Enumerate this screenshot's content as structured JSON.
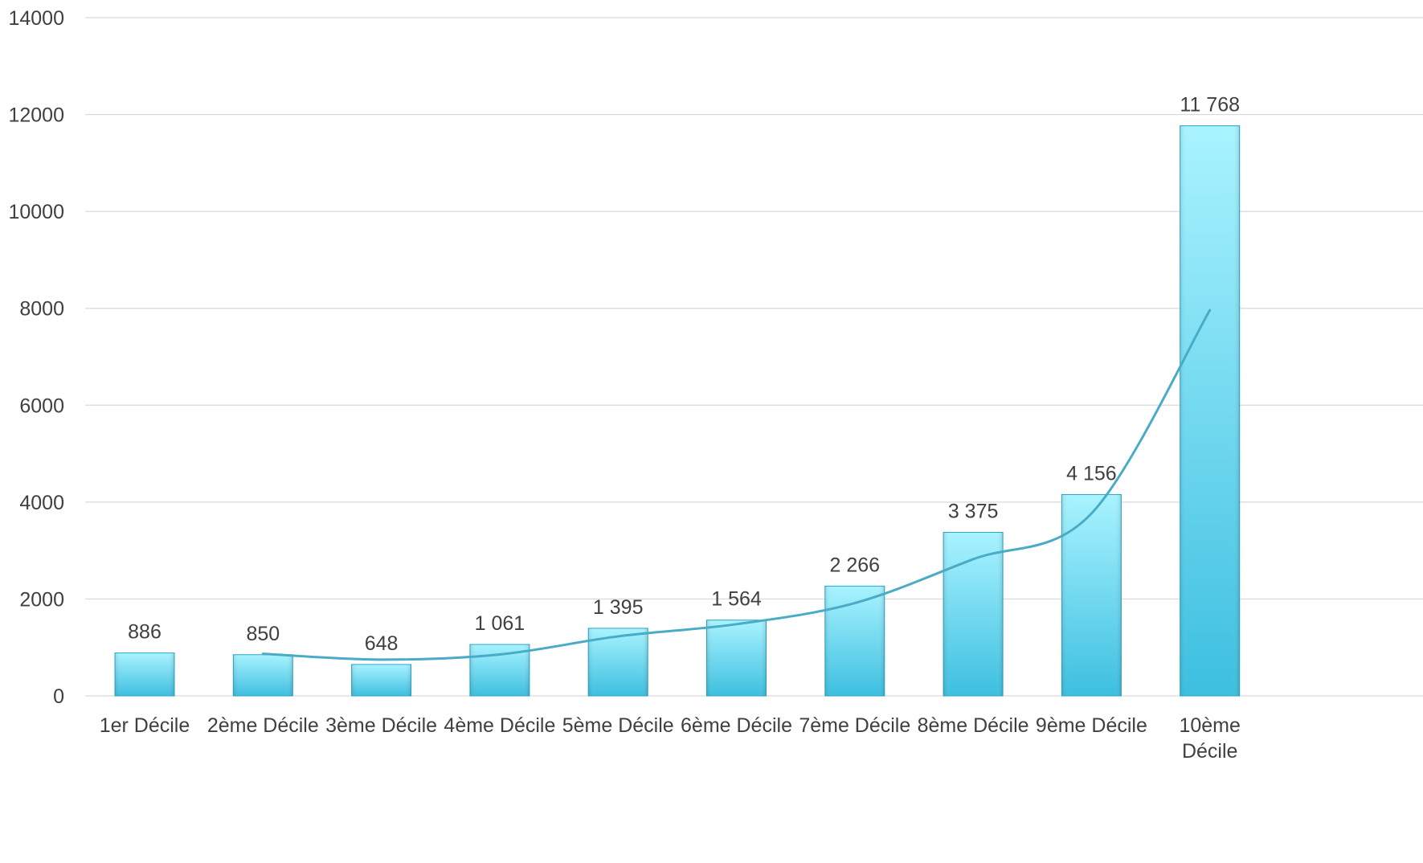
{
  "chart_data": {
    "type": "bar",
    "categories": [
      "1er Décile",
      "2ème Décile",
      "3ème Décile",
      "4ème Décile",
      "5ème Décile",
      "6ème Décile",
      "7ème Décile",
      "8ème Décile",
      "9ème Décile",
      "10ème Décile"
    ],
    "category_lines": [
      [
        "1er Décile"
      ],
      [
        "2ème Décile"
      ],
      [
        "3ème Décile"
      ],
      [
        "4ème Décile"
      ],
      [
        "5ème Décile"
      ],
      [
        "6ème Décile"
      ],
      [
        "7ème Décile"
      ],
      [
        "8ème Décile"
      ],
      [
        "9ème Décile"
      ],
      [
        "10ème",
        "Décile"
      ]
    ],
    "values": [
      886,
      850,
      648,
      1061,
      1395,
      1564,
      2266,
      3375,
      4156,
      11768
    ],
    "data_labels": [
      "886",
      "850",
      "648",
      "1 061",
      "1 395",
      "1 564",
      "2 266",
      "3 375",
      "4 156",
      "11 768"
    ],
    "trendline": {
      "type": "moving-average",
      "period": 2,
      "values": [
        null,
        868,
        749,
        854.5,
        1228,
        1479.5,
        1915,
        2820.5,
        3765.5,
        7962
      ]
    },
    "title": "",
    "xlabel": "",
    "ylabel": "",
    "ylim": [
      0,
      14000
    ],
    "yticks": [
      0,
      2000,
      4000,
      6000,
      8000,
      10000,
      12000,
      14000
    ],
    "grid": true,
    "legend": "none",
    "colors": {
      "bar_light": "#a9f3ff",
      "bar_dark": "#3dbfe0",
      "bar_edge": "#2aa6c8",
      "line": "#4aabc6",
      "grid": "#d9d9d9",
      "text": "#404040"
    }
  }
}
